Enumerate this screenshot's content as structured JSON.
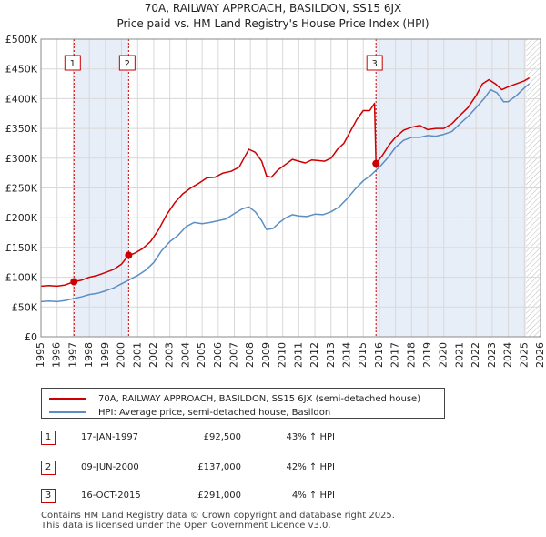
{
  "chart_data": {
    "type": "line",
    "title": "70A, RAILWAY APPROACH, BASILDON, SS15 6JX",
    "subtitle": "Price paid vs. HM Land Registry's House Price Index (HPI)",
    "xlim": [
      1995,
      2026
    ],
    "ylim": [
      0,
      500000
    ],
    "x_ticks": [
      1995,
      1996,
      1997,
      1998,
      1999,
      2000,
      2001,
      2002,
      2003,
      2004,
      2005,
      2006,
      2007,
      2008,
      2009,
      2010,
      2011,
      2012,
      2013,
      2014,
      2015,
      2016,
      2017,
      2018,
      2019,
      2020,
      2021,
      2022,
      2023,
      2024,
      2025,
      2026
    ],
    "y_ticks": [
      {
        "value": 0,
        "label": "£0"
      },
      {
        "value": 50000,
        "label": "£50K"
      },
      {
        "value": 100000,
        "label": "£100K"
      },
      {
        "value": 150000,
        "label": "£150K"
      },
      {
        "value": 200000,
        "label": "£200K"
      },
      {
        "value": 250000,
        "label": "£250K"
      },
      {
        "value": 300000,
        "label": "£300K"
      },
      {
        "value": 350000,
        "label": "£350K"
      },
      {
        "value": 400000,
        "label": "£400K"
      },
      {
        "value": 450000,
        "label": "£450K"
      },
      {
        "value": 500000,
        "label": "£500K"
      }
    ],
    "grid": true,
    "future_hatch_from": 2025.1,
    "series": [
      {
        "name": "70A, RAILWAY APPROACH, BASILDON, SS15 6JX (semi-detached house)",
        "color": "#cc0000",
        "x": [
          1995.0,
          1995.5,
          1996.0,
          1996.5,
          1997.05,
          1997.5,
          1998.0,
          1998.5,
          1999.0,
          1999.5,
          2000.0,
          2000.44,
          2000.8,
          2001.3,
          2001.8,
          2002.3,
          2002.8,
          2003.3,
          2003.8,
          2004.3,
          2004.8,
          2005.3,
          2005.8,
          2006.3,
          2006.8,
          2007.3,
          2007.6,
          2007.9,
          2008.3,
          2008.7,
          2009.0,
          2009.3,
          2009.7,
          2010.2,
          2010.6,
          2011.0,
          2011.4,
          2011.8,
          2012.2,
          2012.6,
          2013.0,
          2013.4,
          2013.8,
          2014.2,
          2014.6,
          2015.0,
          2015.4,
          2015.7,
          2015.79,
          2016.2,
          2016.6,
          2017.0,
          2017.5,
          2018.0,
          2018.5,
          2019.0,
          2019.5,
          2020.0,
          2020.5,
          2021.0,
          2021.5,
          2022.0,
          2022.4,
          2022.8,
          2023.2,
          2023.6,
          2024.0,
          2024.5,
          2025.0,
          2025.3
        ],
        "y": [
          85000,
          86000,
          85000,
          87000,
          92500,
          95000,
          100000,
          103000,
          108000,
          113000,
          122000,
          137000,
          140000,
          148000,
          160000,
          180000,
          205000,
          225000,
          240000,
          250000,
          258000,
          267000,
          268000,
          275000,
          278000,
          285000,
          300000,
          315000,
          310000,
          295000,
          270000,
          268000,
          280000,
          290000,
          298000,
          295000,
          292000,
          297000,
          296000,
          295000,
          300000,
          315000,
          325000,
          345000,
          365000,
          380000,
          380000,
          392000,
          291000,
          305000,
          322000,
          335000,
          347000,
          352000,
          355000,
          348000,
          350000,
          350000,
          358000,
          372000,
          385000,
          405000,
          425000,
          432000,
          425000,
          415000,
          420000,
          425000,
          430000,
          435000
        ]
      },
      {
        "name": "HPI: Average price, semi-detached house, Basildon",
        "color": "#5b8ec4",
        "x": [
          1995.0,
          1995.5,
          1996.0,
          1996.5,
          1997.0,
          1997.5,
          1998.0,
          1998.5,
          1999.0,
          1999.5,
          2000.0,
          2000.5,
          2001.0,
          2001.5,
          2002.0,
          2002.5,
          2003.0,
          2003.5,
          2004.0,
          2004.5,
          2005.0,
          2005.5,
          2006.0,
          2006.5,
          2007.0,
          2007.5,
          2007.9,
          2008.3,
          2008.7,
          2009.0,
          2009.4,
          2009.8,
          2010.2,
          2010.6,
          2011.0,
          2011.5,
          2012.0,
          2012.5,
          2013.0,
          2013.5,
          2014.0,
          2014.5,
          2015.0,
          2015.5,
          2016.0,
          2016.5,
          2017.0,
          2017.5,
          2018.0,
          2018.5,
          2019.0,
          2019.5,
          2020.0,
          2020.5,
          2021.0,
          2021.5,
          2022.0,
          2022.5,
          2022.9,
          2023.3,
          2023.7,
          2024.0,
          2024.5,
          2025.0,
          2025.3
        ],
        "y": [
          59000,
          60000,
          59000,
          61000,
          64000,
          67000,
          71000,
          73000,
          77000,
          82000,
          89000,
          96000,
          103000,
          112000,
          125000,
          145000,
          160000,
          170000,
          185000,
          192000,
          190000,
          192000,
          195000,
          198000,
          207000,
          215000,
          218000,
          210000,
          195000,
          180000,
          182000,
          192000,
          200000,
          205000,
          203000,
          202000,
          206000,
          205000,
          210000,
          218000,
          232000,
          248000,
          262000,
          272000,
          285000,
          300000,
          318000,
          330000,
          335000,
          335000,
          338000,
          337000,
          340000,
          345000,
          358000,
          370000,
          385000,
          400000,
          415000,
          410000,
          395000,
          395000,
          405000,
          418000,
          425000
        ]
      }
    ],
    "sales": [
      {
        "label": "1",
        "x": 1997.05,
        "price": 92500
      },
      {
        "label": "2",
        "x": 2000.44,
        "price": 137000
      },
      {
        "label": "3",
        "x": 2015.79,
        "price": 291000
      }
    ]
  },
  "legend": {
    "red_label": "70A, RAILWAY APPROACH, BASILDON, SS15 6JX (semi-detached house)",
    "blue_label": "HPI: Average price, semi-detached house, Basildon"
  },
  "sales_table": [
    {
      "num": "1",
      "date": "17-JAN-1997",
      "price": "£92,500",
      "hpi": "43% ↑ HPI"
    },
    {
      "num": "2",
      "date": "09-JUN-2000",
      "price": "£137,000",
      "hpi": "42% ↑ HPI"
    },
    {
      "num": "3",
      "date": "16-OCT-2015",
      "price": "£291,000",
      "hpi": "4% ↑ HPI"
    }
  ],
  "footer": {
    "line1": "Contains HM Land Registry data © Crown copyright and database right 2025.",
    "line2": "This data is licensed under the Open Government Licence v3.0."
  }
}
